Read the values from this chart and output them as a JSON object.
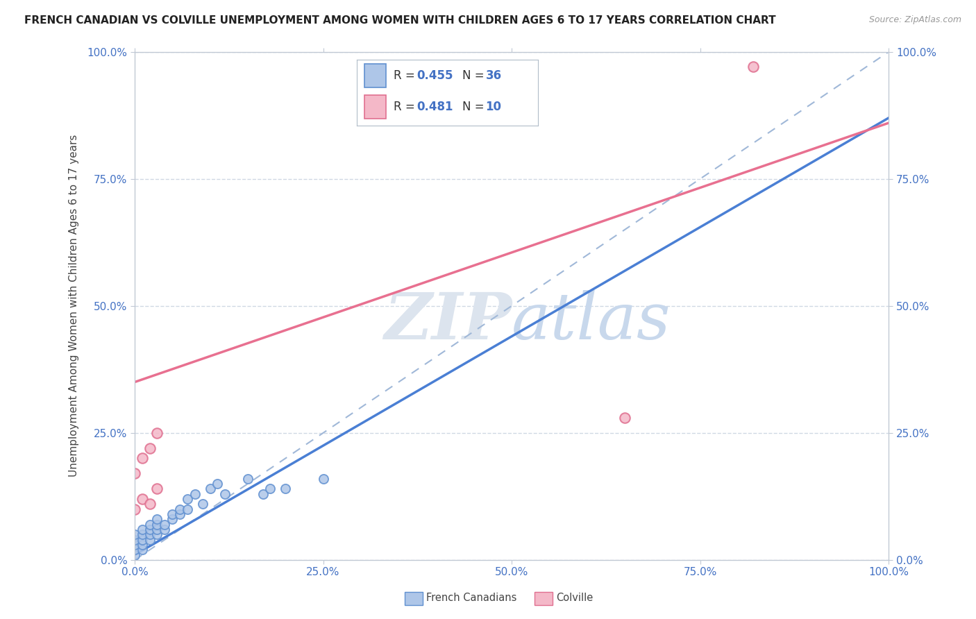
{
  "title": "FRENCH CANADIAN VS COLVILLE UNEMPLOYMENT AMONG WOMEN WITH CHILDREN AGES 6 TO 17 YEARS CORRELATION CHART",
  "source": "Source: ZipAtlas.com",
  "ylabel": "Unemployment Among Women with Children Ages 6 to 17 years",
  "xlim": [
    0.0,
    1.0
  ],
  "ylim": [
    0.0,
    1.0
  ],
  "xticks": [
    0.0,
    0.25,
    0.5,
    0.75,
    1.0
  ],
  "yticks": [
    0.0,
    0.25,
    0.5,
    0.75,
    1.0
  ],
  "xtick_labels": [
    "0.0%",
    "25.0%",
    "50.0%",
    "75.0%",
    "100.0%"
  ],
  "ytick_labels": [
    "0.0%",
    "25.0%",
    "50.0%",
    "75.0%",
    "100.0%"
  ],
  "french_R": 0.455,
  "french_N": 36,
  "colville_R": 0.481,
  "colville_N": 10,
  "french_face_color": "#aec6e8",
  "colville_face_color": "#f4b8c8",
  "french_edge_color": "#6090d0",
  "colville_edge_color": "#e07090",
  "french_line_color": "#4a7fd4",
  "colville_line_color": "#e87090",
  "bg_color": "#ffffff",
  "grid_color": "#d0d8e4",
  "diag_color": "#a0b8d8",
  "tick_color": "#4472c4",
  "label_color": "#444444",
  "watermark_color": "#dce4ee",
  "fc_x": [
    0.0,
    0.0,
    0.0,
    0.0,
    0.0,
    0.01,
    0.01,
    0.01,
    0.01,
    0.01,
    0.02,
    0.02,
    0.02,
    0.02,
    0.03,
    0.03,
    0.03,
    0.03,
    0.04,
    0.04,
    0.05,
    0.05,
    0.06,
    0.06,
    0.07,
    0.07,
    0.08,
    0.09,
    0.1,
    0.11,
    0.12,
    0.15,
    0.17,
    0.18,
    0.2,
    0.25
  ],
  "fc_y": [
    0.01,
    0.02,
    0.03,
    0.04,
    0.05,
    0.02,
    0.03,
    0.04,
    0.05,
    0.06,
    0.04,
    0.05,
    0.06,
    0.07,
    0.05,
    0.06,
    0.07,
    0.08,
    0.06,
    0.07,
    0.08,
    0.09,
    0.09,
    0.1,
    0.1,
    0.12,
    0.13,
    0.11,
    0.14,
    0.15,
    0.13,
    0.16,
    0.13,
    0.14,
    0.14,
    0.16
  ],
  "cv_x": [
    0.0,
    0.0,
    0.01,
    0.01,
    0.02,
    0.02,
    0.03,
    0.03,
    0.65,
    0.82
  ],
  "cv_y": [
    0.1,
    0.17,
    0.12,
    0.2,
    0.11,
    0.22,
    0.14,
    0.25,
    0.28,
    0.97
  ],
  "fc_line_x0": 0.0,
  "fc_line_y0": 0.01,
  "fc_line_x1": 1.0,
  "fc_line_y1": 0.87,
  "cv_line_x0": 0.0,
  "cv_line_y0": 0.35,
  "cv_line_x1": 1.0,
  "cv_line_y1": 0.86
}
